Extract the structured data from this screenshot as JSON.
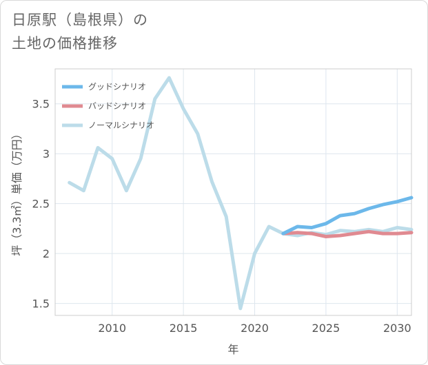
{
  "title": {
    "line1": "日原駅（島根県）の",
    "line2": "土地の価格推移"
  },
  "chart_data": {
    "type": "line",
    "xlabel": "年",
    "ylabel": "坪（3.3㎡）単価（万円）",
    "xlim": [
      2006,
      2031
    ],
    "ylim": [
      1.38,
      3.85
    ],
    "xticks": [
      2010,
      2015,
      2020,
      2025,
      2030
    ],
    "yticks": [
      1.5,
      2,
      2.5,
      3,
      3.5
    ],
    "xtick_labels": [
      "2010",
      "2015",
      "2020",
      "2025",
      "2030"
    ],
    "ytick_labels": [
      "1.5",
      "2",
      "2.5",
      "3",
      "3.5"
    ],
    "grid": true,
    "legend_position": "top-left",
    "series": [
      {
        "name": "グッドシナリオ",
        "color": "#6cb8ea",
        "x": [
          2022,
          2023,
          2024,
          2025,
          2026,
          2027,
          2028,
          2029,
          2030,
          2031
        ],
        "y": [
          2.2,
          2.27,
          2.26,
          2.3,
          2.38,
          2.4,
          2.45,
          2.49,
          2.52,
          2.56
        ]
      },
      {
        "name": "バッドシナリオ",
        "color": "#e08a91",
        "x": [
          2022,
          2023,
          2024,
          2025,
          2026,
          2027,
          2028,
          2029,
          2030,
          2031
        ],
        "y": [
          2.2,
          2.21,
          2.2,
          2.17,
          2.18,
          2.2,
          2.22,
          2.2,
          2.2,
          2.21
        ]
      },
      {
        "name": "ノーマルシナリオ",
        "color": "#bcdce9",
        "x": [
          2007,
          2008,
          2009,
          2010,
          2011,
          2012,
          2013,
          2014,
          2015,
          2016,
          2017,
          2018,
          2019,
          2020,
          2021,
          2022,
          2023,
          2024,
          2025,
          2026,
          2027,
          2028,
          2029,
          2030,
          2031
        ],
        "y": [
          2.71,
          2.63,
          3.06,
          2.95,
          2.63,
          2.95,
          3.55,
          3.76,
          3.45,
          3.2,
          2.72,
          2.37,
          1.45,
          2.0,
          2.27,
          2.2,
          2.18,
          2.21,
          2.19,
          2.23,
          2.22,
          2.24,
          2.22,
          2.26,
          2.24
        ]
      }
    ]
  }
}
